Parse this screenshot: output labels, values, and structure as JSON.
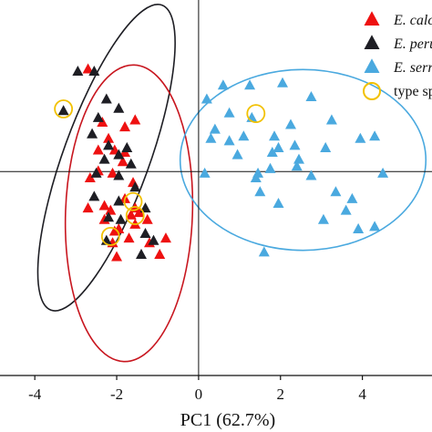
{
  "chart_data": {
    "type": "scatter",
    "title": "",
    "xlabel": "PC1 (62.7%)",
    "ylabel": "",
    "xlim": [
      -4.85,
      5.7
    ],
    "ylim": [
      -4.4,
      3.7
    ],
    "xticks": [
      -4,
      -2,
      0,
      2,
      4
    ],
    "xtick_labels": [
      "-4",
      "-2",
      "0",
      "2",
      "4"
    ],
    "grid": false,
    "legend_position": "top-right",
    "series": [
      {
        "name": "E. calc",
        "italic": true,
        "color": "#ee1111",
        "marker": "triangle-filled",
        "points": [
          [
            -2.7,
            2.2
          ],
          [
            -2.35,
            1.05
          ],
          [
            -2.2,
            0.7
          ],
          [
            -1.8,
            0.95
          ],
          [
            -1.55,
            1.1
          ],
          [
            -2.45,
            0.45
          ],
          [
            -2.05,
            0.45
          ],
          [
            -1.8,
            0.4
          ],
          [
            -1.85,
            0.2
          ],
          [
            -2.45,
            0.0
          ],
          [
            -2.1,
            -0.05
          ],
          [
            -2.65,
            -0.15
          ],
          [
            -1.6,
            -0.25
          ],
          [
            -1.8,
            -0.6
          ],
          [
            -2.3,
            -0.75
          ],
          [
            -2.7,
            -0.8
          ],
          [
            -2.15,
            -0.85
          ],
          [
            -1.55,
            -0.8
          ],
          [
            -1.25,
            -1.05
          ],
          [
            -2.3,
            -1.05
          ],
          [
            -1.65,
            -0.95
          ],
          [
            -1.55,
            -1.15
          ],
          [
            -1.45,
            -0.9
          ],
          [
            -2.05,
            -1.3
          ],
          [
            -2.1,
            -1.55
          ],
          [
            -1.7,
            -1.45
          ],
          [
            -1.2,
            -1.55
          ],
          [
            -0.8,
            -1.45
          ],
          [
            -2.0,
            -1.85
          ],
          [
            -0.95,
            -1.8
          ],
          [
            -1.95,
            -1.25
          ]
        ]
      },
      {
        "name": "E. peru",
        "italic": true,
        "color": "#1e1e24",
        "marker": "triangle-filled",
        "points": [
          [
            -2.95,
            2.15
          ],
          [
            -2.55,
            2.15
          ],
          [
            -3.3,
            1.3
          ],
          [
            -2.25,
            1.55
          ],
          [
            -2.45,
            1.15
          ],
          [
            -1.95,
            1.35
          ],
          [
            -2.6,
            0.8
          ],
          [
            -2.2,
            0.55
          ],
          [
            -1.75,
            0.5
          ],
          [
            -1.95,
            0.35
          ],
          [
            -2.3,
            0.25
          ],
          [
            -1.65,
            0.15
          ],
          [
            -2.5,
            -0.05
          ],
          [
            -1.95,
            -0.1
          ],
          [
            -1.55,
            -0.35
          ],
          [
            -2.55,
            -0.55
          ],
          [
            -1.95,
            -0.65
          ],
          [
            -1.3,
            -0.8
          ],
          [
            -2.2,
            -1.0
          ],
          [
            -1.3,
            -1.35
          ],
          [
            -1.1,
            -1.5
          ],
          [
            -2.25,
            -1.5
          ],
          [
            -1.4,
            -1.8
          ],
          [
            -1.9,
            -1.05
          ]
        ]
      },
      {
        "name": "E. serr",
        "italic": true,
        "color": "#4aa9df",
        "marker": "triangle-filled",
        "points": [
          [
            0.6,
            1.85
          ],
          [
            1.25,
            1.85
          ],
          [
            2.05,
            1.9
          ],
          [
            2.75,
            1.6
          ],
          [
            0.2,
            1.55
          ],
          [
            0.75,
            1.25
          ],
          [
            1.3,
            1.15
          ],
          [
            2.25,
            1.0
          ],
          [
            3.25,
            1.1
          ],
          [
            0.4,
            0.9
          ],
          [
            0.75,
            0.65
          ],
          [
            1.1,
            0.75
          ],
          [
            1.85,
            0.75
          ],
          [
            3.1,
            0.5
          ],
          [
            3.95,
            0.7
          ],
          [
            4.3,
            0.75
          ],
          [
            1.95,
            0.5
          ],
          [
            2.35,
            0.55
          ],
          [
            0.3,
            0.7
          ],
          [
            2.45,
            0.25
          ],
          [
            0.95,
            0.35
          ],
          [
            1.8,
            0.4
          ],
          [
            2.4,
            0.1
          ],
          [
            0.15,
            -0.05
          ],
          [
            1.45,
            -0.05
          ],
          [
            1.75,
            0.05
          ],
          [
            2.75,
            -0.1
          ],
          [
            4.5,
            -0.05
          ],
          [
            1.5,
            -0.45
          ],
          [
            3.35,
            -0.45
          ],
          [
            1.95,
            -0.7
          ],
          [
            3.75,
            -0.6
          ],
          [
            3.05,
            -1.05
          ],
          [
            3.6,
            -0.85
          ],
          [
            3.9,
            -1.25
          ],
          [
            4.3,
            -1.2
          ],
          [
            1.6,
            -1.75
          ],
          [
            1.4,
            -0.15
          ]
        ]
      },
      {
        "name": "type sp",
        "italic": false,
        "color": "#f2c100",
        "marker": "circle-open",
        "points": [
          [
            -3.3,
            1.35
          ],
          [
            1.4,
            1.25
          ],
          [
            -1.6,
            -0.65
          ],
          [
            -1.55,
            -0.95
          ],
          [
            -2.15,
            -1.4
          ]
        ]
      }
    ],
    "ellipses": [
      {
        "series": "E. peru",
        "color": "#1e1e24",
        "center": [
          -2.25,
          0.3
        ],
        "semi_axes": [
          1.05,
          3.5
        ],
        "rotation_deg": 20
      },
      {
        "series": "E. calc",
        "color": "#c8161f",
        "center": [
          -1.7,
          -0.9
        ],
        "semi_axes": [
          1.55,
          3.2
        ],
        "rotation_deg": 2
      },
      {
        "series": "E. serr",
        "color": "#4aa9df",
        "center": [
          2.55,
          0.25
        ],
        "semi_axes": [
          3.0,
          1.95
        ],
        "rotation_deg": 0
      }
    ],
    "reference_lines": {
      "x": 0,
      "y": 0
    }
  }
}
